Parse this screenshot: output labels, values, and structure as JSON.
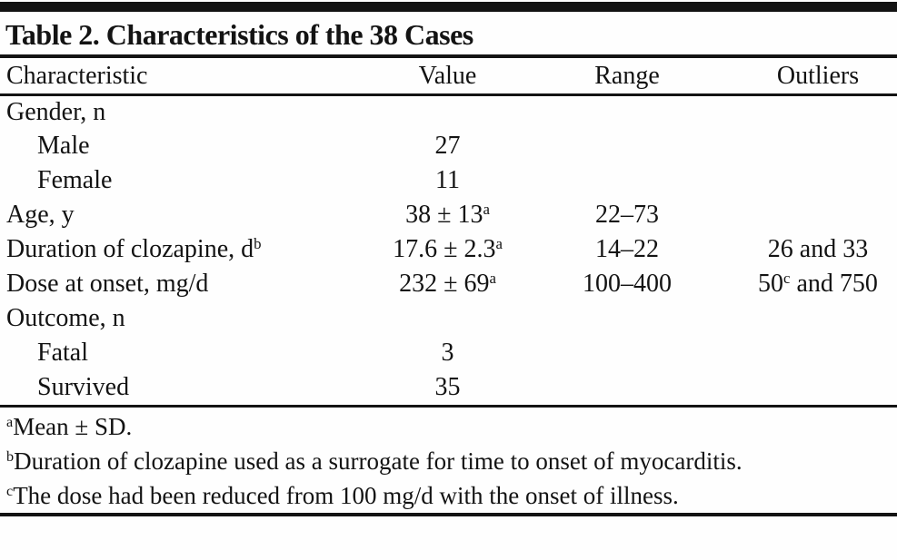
{
  "table": {
    "title": "Table 2. Characteristics of the 38 Cases",
    "columns": [
      "Characteristic",
      "Value",
      "Range",
      "Outliers"
    ],
    "column_keys": [
      "characteristic",
      "value",
      "range",
      "outliers"
    ],
    "rows": [
      {
        "indent": 0,
        "cells": [
          [
            {
              "t": "Gender, n"
            }
          ],
          [],
          [],
          []
        ]
      },
      {
        "indent": 1,
        "cells": [
          [
            {
              "t": "Male"
            }
          ],
          [
            {
              "t": "27"
            }
          ],
          [],
          []
        ]
      },
      {
        "indent": 1,
        "cells": [
          [
            {
              "t": "Female"
            }
          ],
          [
            {
              "t": "11"
            }
          ],
          [],
          []
        ]
      },
      {
        "indent": 0,
        "cells": [
          [
            {
              "t": "Age, y"
            }
          ],
          [
            {
              "t": "38 ± 13"
            },
            {
              "t": "a",
              "sup": true
            }
          ],
          [
            {
              "t": "22–73"
            }
          ],
          []
        ]
      },
      {
        "indent": 0,
        "cells": [
          [
            {
              "t": "Duration of clozapine, d"
            },
            {
              "t": "b",
              "sup": true
            }
          ],
          [
            {
              "t": "17.6 ± 2.3"
            },
            {
              "t": "a",
              "sup": true
            }
          ],
          [
            {
              "t": "14–22"
            }
          ],
          [
            {
              "t": "26 and 33"
            }
          ]
        ]
      },
      {
        "indent": 0,
        "cells": [
          [
            {
              "t": "Dose at onset, mg/d"
            }
          ],
          [
            {
              "t": "232 ± 69"
            },
            {
              "t": "a",
              "sup": true
            }
          ],
          [
            {
              "t": "100–400"
            }
          ],
          [
            {
              "t": "50"
            },
            {
              "t": "c",
              "sup": true
            },
            {
              "t": " and 750"
            }
          ]
        ]
      },
      {
        "indent": 0,
        "cells": [
          [
            {
              "t": "Outcome, n"
            }
          ],
          [],
          [],
          []
        ]
      },
      {
        "indent": 1,
        "cells": [
          [
            {
              "t": "Fatal"
            }
          ],
          [
            {
              "t": "3"
            }
          ],
          [],
          []
        ]
      },
      {
        "indent": 1,
        "cells": [
          [
            {
              "t": "Survived"
            }
          ],
          [
            {
              "t": "35"
            }
          ],
          [],
          []
        ]
      }
    ],
    "footnotes": [
      {
        "marker": "a",
        "text": "Mean ± SD."
      },
      {
        "marker": "b",
        "text": "Duration of clozapine used as a surrogate for time to onset of myocarditis."
      },
      {
        "marker": "c",
        "text": "The dose had been reduced from 100 mg/d with the onset of illness."
      }
    ],
    "colors": {
      "text": "#131313",
      "rule": "#131313",
      "background": "#fefefe"
    }
  }
}
